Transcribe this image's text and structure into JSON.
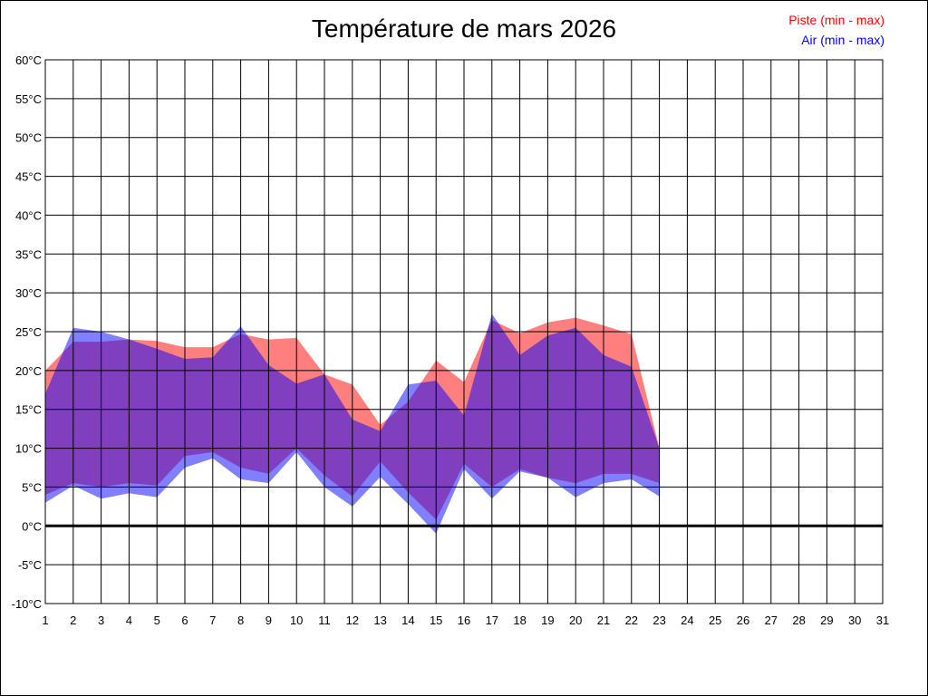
{
  "chart_data": {
    "type": "area",
    "title": "Température de mars 2026",
    "x_ticks": [
      "1",
      "2",
      "3",
      "4",
      "5",
      "6",
      "7",
      "8",
      "9",
      "10",
      "11",
      "12",
      "13",
      "14",
      "15",
      "16",
      "17",
      "18",
      "19",
      "20",
      "21",
      "22",
      "23",
      "24",
      "25",
      "26",
      "27",
      "28",
      "29",
      "30",
      "31"
    ],
    "y_ticks": [
      "60°C",
      "55°C",
      "50°C",
      "45°C",
      "40°C",
      "35°C",
      "30°C",
      "25°C",
      "20°C",
      "15°C",
      "10°C",
      "5°C",
      "0°C",
      "-5°C",
      "-10°C"
    ],
    "xlim": [
      1,
      31
    ],
    "ylim": [
      -10,
      60
    ],
    "grid": true,
    "zero_line": true,
    "legend_position": "top-right",
    "series": [
      {
        "name": "Piste (min - max)",
        "color": "#ff0000",
        "x": [
          1,
          2,
          3,
          4,
          5,
          6,
          7,
          8,
          9,
          10,
          11,
          12,
          13,
          14,
          15,
          16,
          17,
          18,
          19,
          20,
          21,
          22,
          23
        ],
        "min": [
          4.0,
          5.5,
          5.0,
          5.5,
          5.2,
          9.0,
          9.5,
          7.5,
          6.7,
          10.0,
          6.5,
          3.8,
          8.3,
          4.3,
          0.8,
          8.0,
          5.0,
          7.3,
          6.2,
          5.5,
          6.7,
          6.7,
          5.5
        ],
        "max": [
          20.0,
          23.7,
          23.7,
          24.0,
          23.8,
          23.0,
          23.0,
          24.7,
          24.0,
          24.2,
          19.5,
          18.2,
          13.0,
          16.0,
          21.3,
          18.5,
          26.5,
          24.8,
          26.2,
          26.8,
          25.8,
          24.7,
          10.0
        ]
      },
      {
        "name": "Air (min - max)",
        "color": "#0000ff",
        "x": [
          1,
          2,
          3,
          4,
          5,
          6,
          7,
          8,
          9,
          10,
          11,
          12,
          13,
          14,
          15,
          16,
          17,
          18,
          19,
          20,
          21,
          22,
          23
        ],
        "min": [
          3.0,
          5.2,
          3.5,
          4.2,
          3.7,
          7.5,
          8.7,
          6.0,
          5.5,
          9.5,
          5.0,
          2.5,
          6.3,
          2.8,
          -1.0,
          7.3,
          3.5,
          7.0,
          6.2,
          3.7,
          5.5,
          6.0,
          3.8
        ],
        "max": [
          17.0,
          25.5,
          25.0,
          24.0,
          22.8,
          21.5,
          21.7,
          25.7,
          20.7,
          18.3,
          19.5,
          13.7,
          12.2,
          18.2,
          18.7,
          14.2,
          27.3,
          22.0,
          24.5,
          25.5,
          22.0,
          20.5,
          10.0
        ]
      }
    ]
  }
}
